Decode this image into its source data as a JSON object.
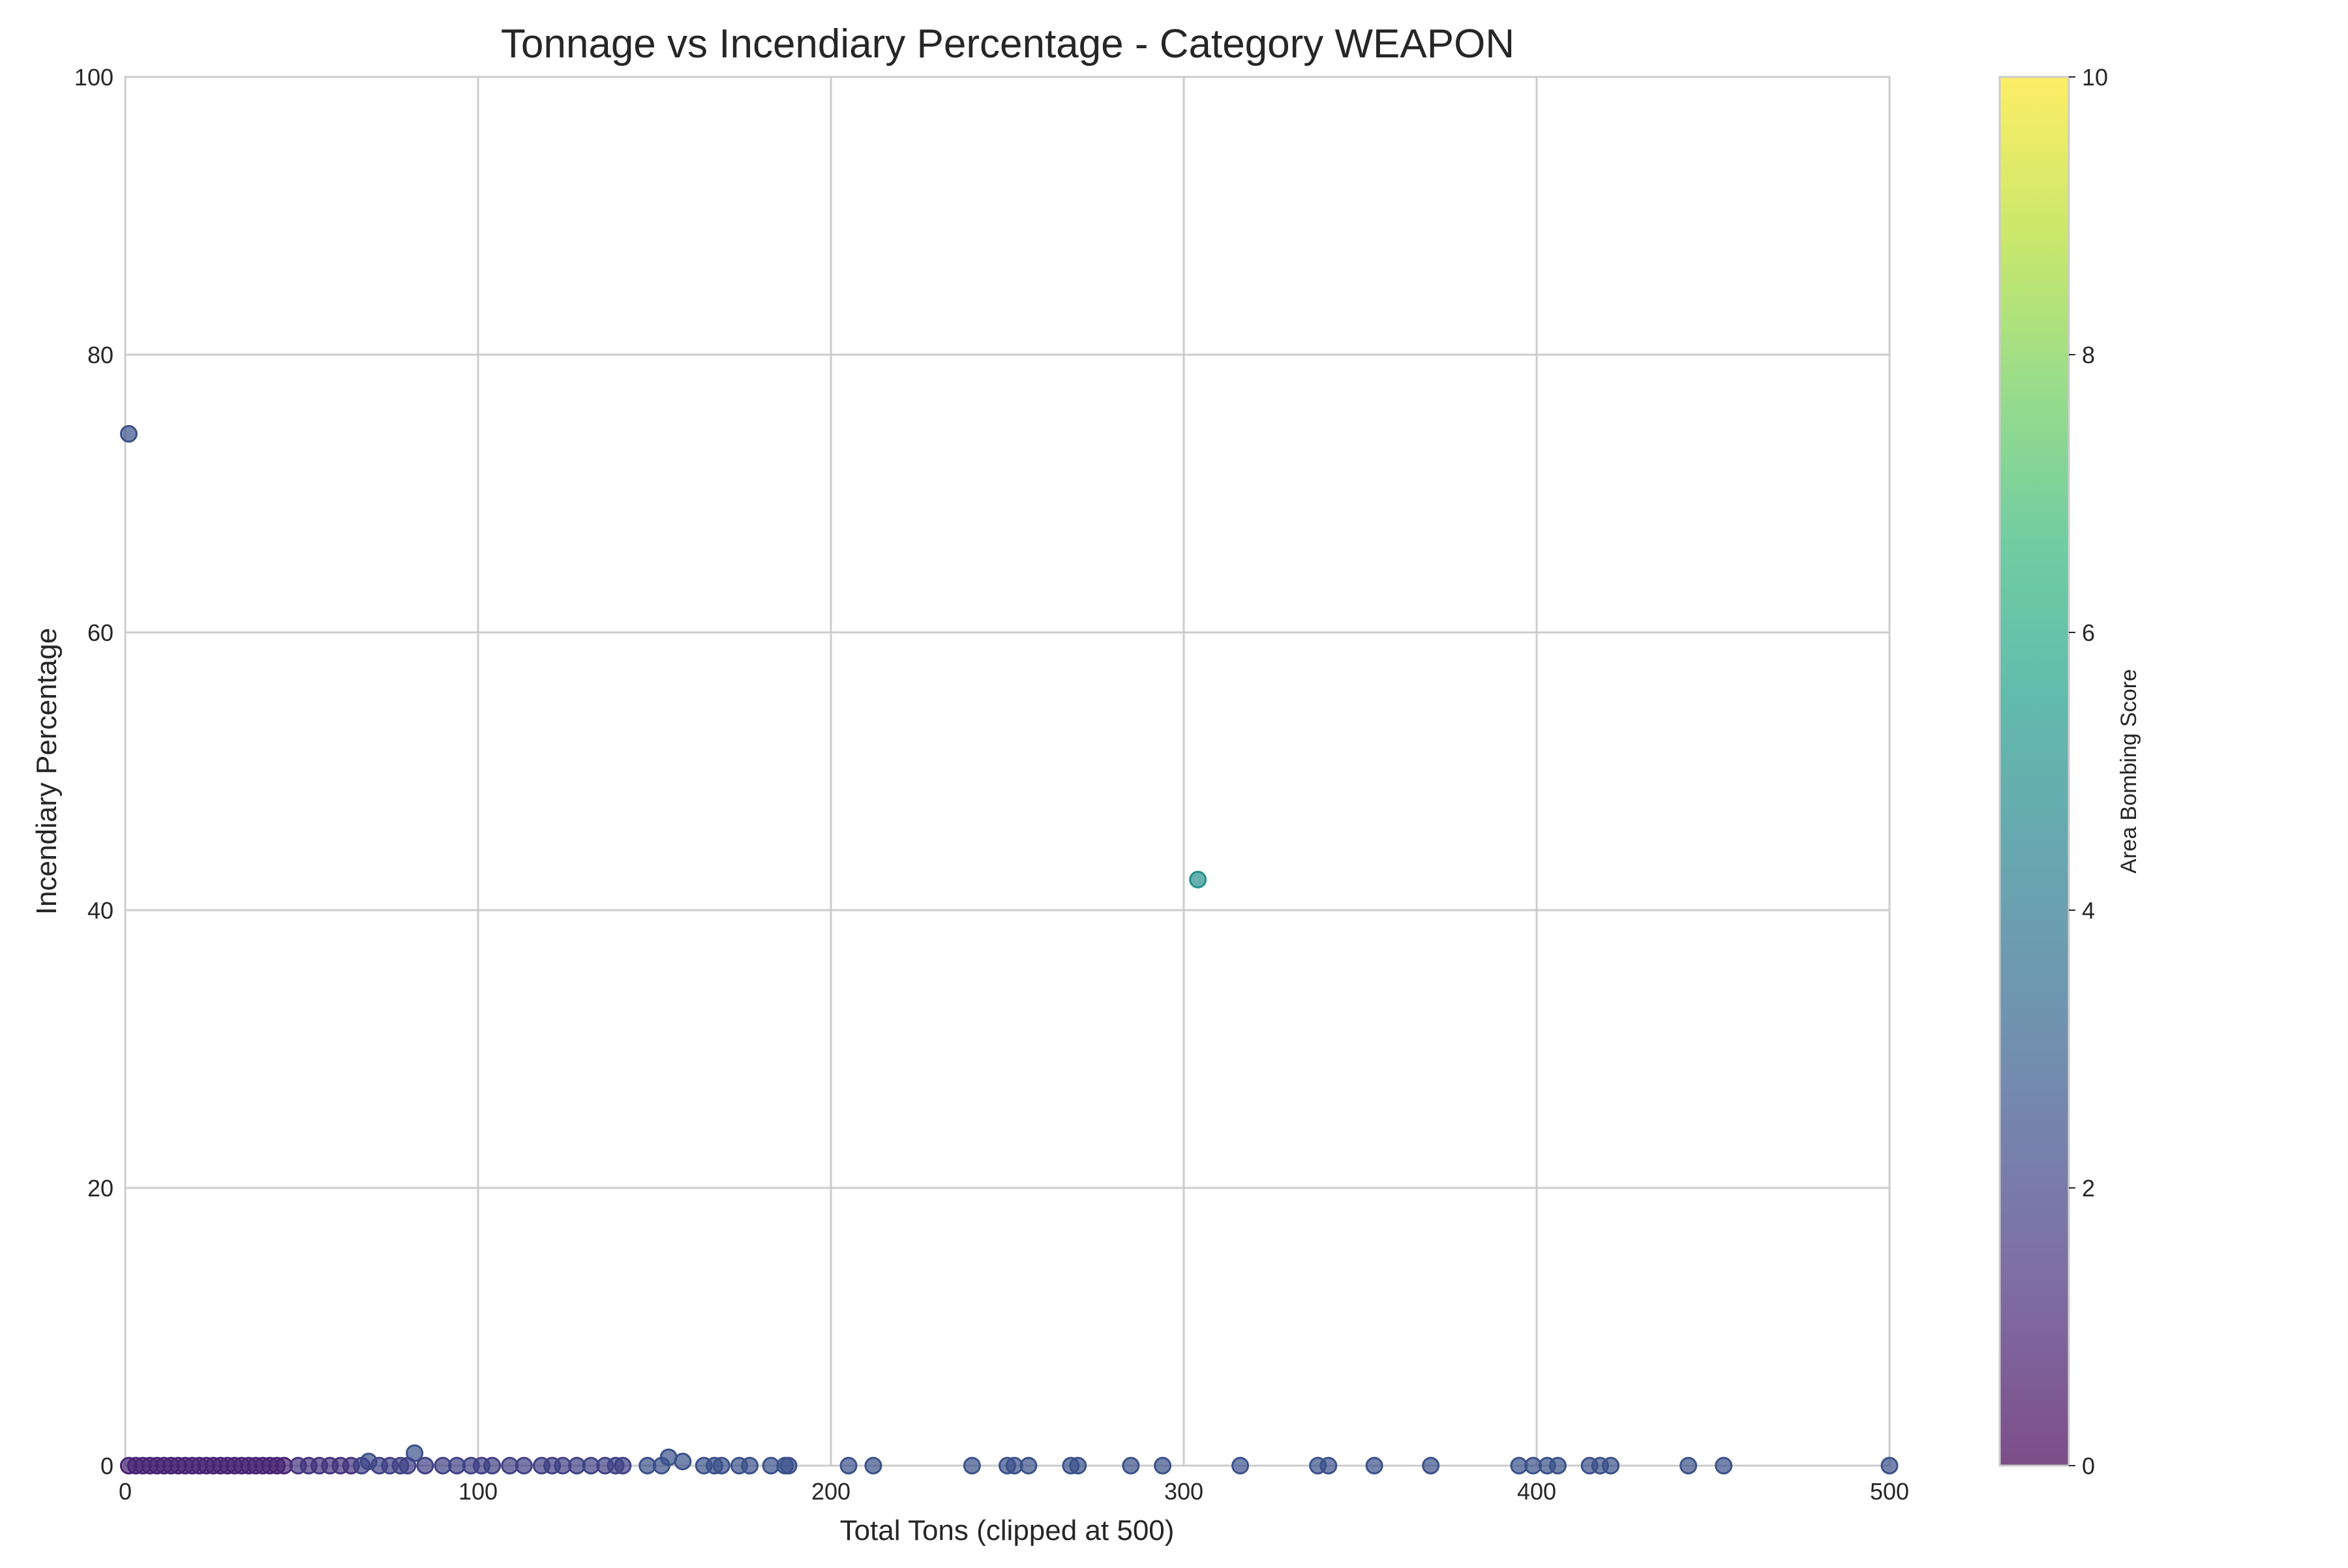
{
  "chart_data": {
    "type": "scatter",
    "title": "Tonnage vs Incendiary Percentage - Category WEAPON",
    "xlabel": "Total Tons (clipped at 500)",
    "ylabel": "Incendiary Percentage",
    "xlim": [
      0,
      500
    ],
    "ylim": [
      0,
      100
    ],
    "xticks": [
      "0",
      "100",
      "200",
      "300",
      "400",
      "500"
    ],
    "yticks": [
      "0",
      "20",
      "40",
      "60",
      "80",
      "100"
    ],
    "grid": true,
    "colorbar": {
      "label": "Area Bombing Score",
      "range": [
        0,
        10
      ],
      "ticks": [
        "0",
        "2",
        "4",
        "6",
        "8",
        "10"
      ],
      "colormap": "viridis",
      "stops": [
        "#440154",
        "#482878",
        "#3e4989",
        "#31688e",
        "#26828e",
        "#1f9e89",
        "#35b779",
        "#6ece58",
        "#b5de2b",
        "#fde725"
      ]
    },
    "points": [
      {
        "x": 1,
        "y": 74.3,
        "c": 2.5
      },
      {
        "x": 304,
        "y": 42.2,
        "c": 5
      },
      {
        "x": 82,
        "y": 0.9,
        "c": 2.5
      },
      {
        "x": 154,
        "y": 0.6,
        "c": 2.5
      },
      {
        "x": 158,
        "y": 0.3,
        "c": 2.5
      },
      {
        "x": 69,
        "y": 0.3,
        "c": 2.5
      },
      {
        "x": 1,
        "y": 0,
        "c": 1
      },
      {
        "x": 3,
        "y": 0,
        "c": 1
      },
      {
        "x": 5,
        "y": 0,
        "c": 1
      },
      {
        "x": 7,
        "y": 0,
        "c": 1
      },
      {
        "x": 9,
        "y": 0,
        "c": 1
      },
      {
        "x": 11,
        "y": 0,
        "c": 1
      },
      {
        "x": 13,
        "y": 0,
        "c": 1
      },
      {
        "x": 15,
        "y": 0,
        "c": 1
      },
      {
        "x": 17,
        "y": 0,
        "c": 1
      },
      {
        "x": 19,
        "y": 0,
        "c": 1
      },
      {
        "x": 21,
        "y": 0,
        "c": 1
      },
      {
        "x": 23,
        "y": 0,
        "c": 1
      },
      {
        "x": 25,
        "y": 0,
        "c": 1
      },
      {
        "x": 27,
        "y": 0,
        "c": 1
      },
      {
        "x": 29,
        "y": 0,
        "c": 1
      },
      {
        "x": 31,
        "y": 0,
        "c": 1
      },
      {
        "x": 33,
        "y": 0,
        "c": 1
      },
      {
        "x": 35,
        "y": 0,
        "c": 1
      },
      {
        "x": 37,
        "y": 0,
        "c": 1
      },
      {
        "x": 39,
        "y": 0,
        "c": 1
      },
      {
        "x": 41,
        "y": 0,
        "c": 1
      },
      {
        "x": 43,
        "y": 0,
        "c": 1
      },
      {
        "x": 45,
        "y": 0,
        "c": 1
      },
      {
        "x": 49,
        "y": 0,
        "c": 1.5
      },
      {
        "x": 52,
        "y": 0,
        "c": 1.5
      },
      {
        "x": 55,
        "y": 0,
        "c": 1.5
      },
      {
        "x": 58,
        "y": 0,
        "c": 1.5
      },
      {
        "x": 61,
        "y": 0,
        "c": 1.5
      },
      {
        "x": 64,
        "y": 0,
        "c": 1.5
      },
      {
        "x": 67,
        "y": 0,
        "c": 2
      },
      {
        "x": 72,
        "y": 0,
        "c": 2
      },
      {
        "x": 75,
        "y": 0,
        "c": 2
      },
      {
        "x": 78,
        "y": 0,
        "c": 2
      },
      {
        "x": 80,
        "y": 0,
        "c": 2
      },
      {
        "x": 85,
        "y": 0,
        "c": 2
      },
      {
        "x": 90,
        "y": 0,
        "c": 2
      },
      {
        "x": 94,
        "y": 0,
        "c": 2
      },
      {
        "x": 98,
        "y": 0,
        "c": 2
      },
      {
        "x": 101,
        "y": 0,
        "c": 2
      },
      {
        "x": 104,
        "y": 0,
        "c": 2
      },
      {
        "x": 109,
        "y": 0,
        "c": 2
      },
      {
        "x": 113,
        "y": 0,
        "c": 2
      },
      {
        "x": 118,
        "y": 0,
        "c": 2
      },
      {
        "x": 121,
        "y": 0,
        "c": 2
      },
      {
        "x": 124,
        "y": 0,
        "c": 2
      },
      {
        "x": 128,
        "y": 0,
        "c": 2
      },
      {
        "x": 132,
        "y": 0,
        "c": 2
      },
      {
        "x": 136,
        "y": 0,
        "c": 2
      },
      {
        "x": 139,
        "y": 0,
        "c": 2
      },
      {
        "x": 141,
        "y": 0,
        "c": 2
      },
      {
        "x": 148,
        "y": 0,
        "c": 2.5
      },
      {
        "x": 152,
        "y": 0,
        "c": 2.5
      },
      {
        "x": 164,
        "y": 0,
        "c": 2.5
      },
      {
        "x": 167,
        "y": 0,
        "c": 2.5
      },
      {
        "x": 169,
        "y": 0,
        "c": 2.5
      },
      {
        "x": 174,
        "y": 0,
        "c": 2.5
      },
      {
        "x": 177,
        "y": 0,
        "c": 2.5
      },
      {
        "x": 183,
        "y": 0,
        "c": 2.5
      },
      {
        "x": 187,
        "y": 0,
        "c": 2.5
      },
      {
        "x": 188,
        "y": 0,
        "c": 2.5
      },
      {
        "x": 205,
        "y": 0,
        "c": 2.5
      },
      {
        "x": 212,
        "y": 0,
        "c": 2.5
      },
      {
        "x": 240,
        "y": 0,
        "c": 2.5
      },
      {
        "x": 250,
        "y": 0,
        "c": 2.5
      },
      {
        "x": 252,
        "y": 0,
        "c": 2.5
      },
      {
        "x": 256,
        "y": 0,
        "c": 2.5
      },
      {
        "x": 268,
        "y": 0,
        "c": 2.5
      },
      {
        "x": 270,
        "y": 0,
        "c": 2.5
      },
      {
        "x": 285,
        "y": 0,
        "c": 2.5
      },
      {
        "x": 294,
        "y": 0,
        "c": 2.5
      },
      {
        "x": 316,
        "y": 0,
        "c": 2.5
      },
      {
        "x": 338,
        "y": 0,
        "c": 2.5
      },
      {
        "x": 341,
        "y": 0,
        "c": 2.5
      },
      {
        "x": 354,
        "y": 0,
        "c": 2.5
      },
      {
        "x": 370,
        "y": 0,
        "c": 2.5
      },
      {
        "x": 395,
        "y": 0,
        "c": 2.5
      },
      {
        "x": 399,
        "y": 0,
        "c": 2.5
      },
      {
        "x": 403,
        "y": 0,
        "c": 2.5
      },
      {
        "x": 406,
        "y": 0,
        "c": 2.5
      },
      {
        "x": 415,
        "y": 0,
        "c": 2.5
      },
      {
        "x": 418,
        "y": 0,
        "c": 2.5
      },
      {
        "x": 421,
        "y": 0,
        "c": 2.5
      },
      {
        "x": 443,
        "y": 0,
        "c": 2.5
      },
      {
        "x": 453,
        "y": 0,
        "c": 2.5
      },
      {
        "x": 500,
        "y": 0,
        "c": 2.5
      }
    ]
  }
}
